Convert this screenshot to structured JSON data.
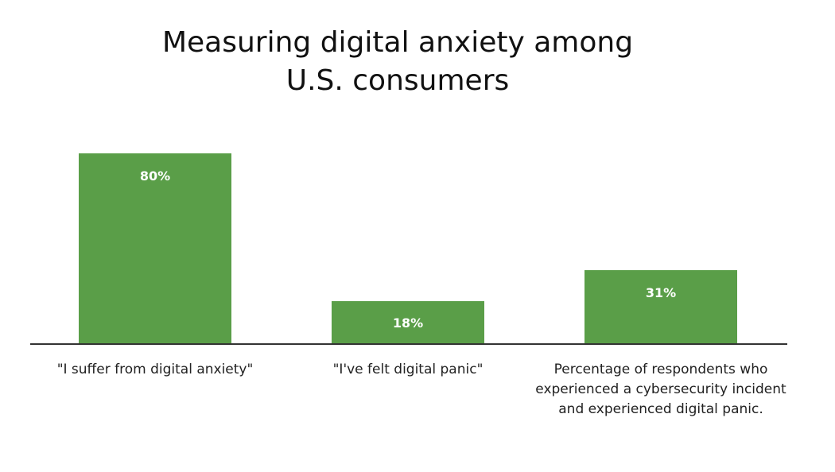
{
  "chart_data": {
    "type": "bar",
    "title_lines": [
      "Measuring digital anxiety among",
      "U.S. consumers"
    ],
    "categories": [
      "\"I suffer from digital anxiety\"",
      "\"I've felt digital panic\"",
      "Percentage of respondents who experienced a cybersecurity incident and experienced digital panic."
    ],
    "values": [
      80,
      18,
      31
    ],
    "data_labels": [
      "80%",
      "18%",
      "31%"
    ],
    "xlabel": "",
    "ylabel": "",
    "ylim": [
      0,
      100
    ],
    "grid": false,
    "bar_color": "#5a9e48",
    "axis_color": "#333333"
  }
}
